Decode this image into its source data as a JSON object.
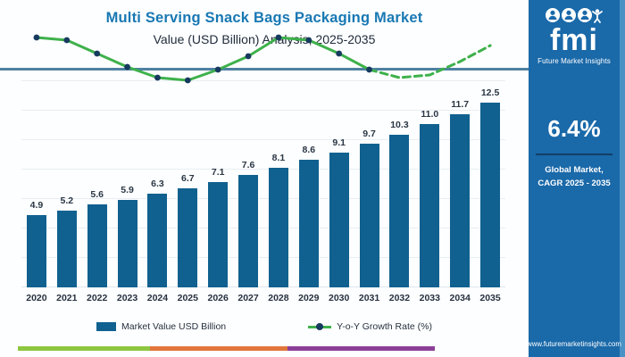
{
  "header": {
    "title": "Multi Serving Snack Bags Packaging Market",
    "subtitle": "Value (USD Billion) Analysis, 2025-2035"
  },
  "chart_data": {
    "type": "bar+line",
    "title": "Multi Serving Snack Bags Packaging Market Value (USD Billion) Analysis, 2025-2035",
    "categories": [
      "2020",
      "2021",
      "2022",
      "2023",
      "2024",
      "2025",
      "2026",
      "2027",
      "2028",
      "2029",
      "2030",
      "2031",
      "2032",
      "2033",
      "2034",
      "2035"
    ],
    "series": [
      {
        "name": "Market Value USD Billion",
        "type": "bar",
        "values": [
          4.9,
          5.2,
          5.6,
          5.9,
          6.3,
          6.7,
          7.1,
          7.6,
          8.1,
          8.6,
          9.1,
          9.7,
          10.3,
          11.0,
          11.7,
          12.5
        ],
        "color": "#10618f"
      },
      {
        "name": "Y-o-Y Growth Rate (%)",
        "type": "line",
        "values": [
          7.3,
          7.2,
          6.7,
          6.2,
          5.8,
          5.7,
          6.1,
          6.6,
          7.3,
          7.2,
          6.7,
          6.1,
          5.8,
          5.9,
          6.4,
          7.0
        ],
        "color": "#3eb14b",
        "marker_color": "#173a5f",
        "solid_until_index": 11,
        "dashed_after_index": 11
      }
    ],
    "xlabel": "",
    "ylabel": "",
    "grid": "horizontal",
    "legend_position": "bottom",
    "value_labels_shown": true
  },
  "legend": {
    "market_value_label": "Market Value USD Billion",
    "growth_label": "Y-o-Y Growth Rate (%)"
  },
  "footer_stripe": {
    "green": "#8dc63f",
    "orange": "#e2763c",
    "purple": "#8c3f98"
  },
  "side_panel": {
    "logo_text": "fmi",
    "logo_subtext": "Future Market Insights",
    "cagr_value": "6.4%",
    "caption_line1": "Global Market,",
    "caption_line2": "CAGR 2025 - 2035",
    "website": "www.futuremarketinsights.com",
    "colors": {
      "bg": "#1a69a9",
      "edge": "#4a92c6",
      "divider": "#123f66"
    }
  }
}
